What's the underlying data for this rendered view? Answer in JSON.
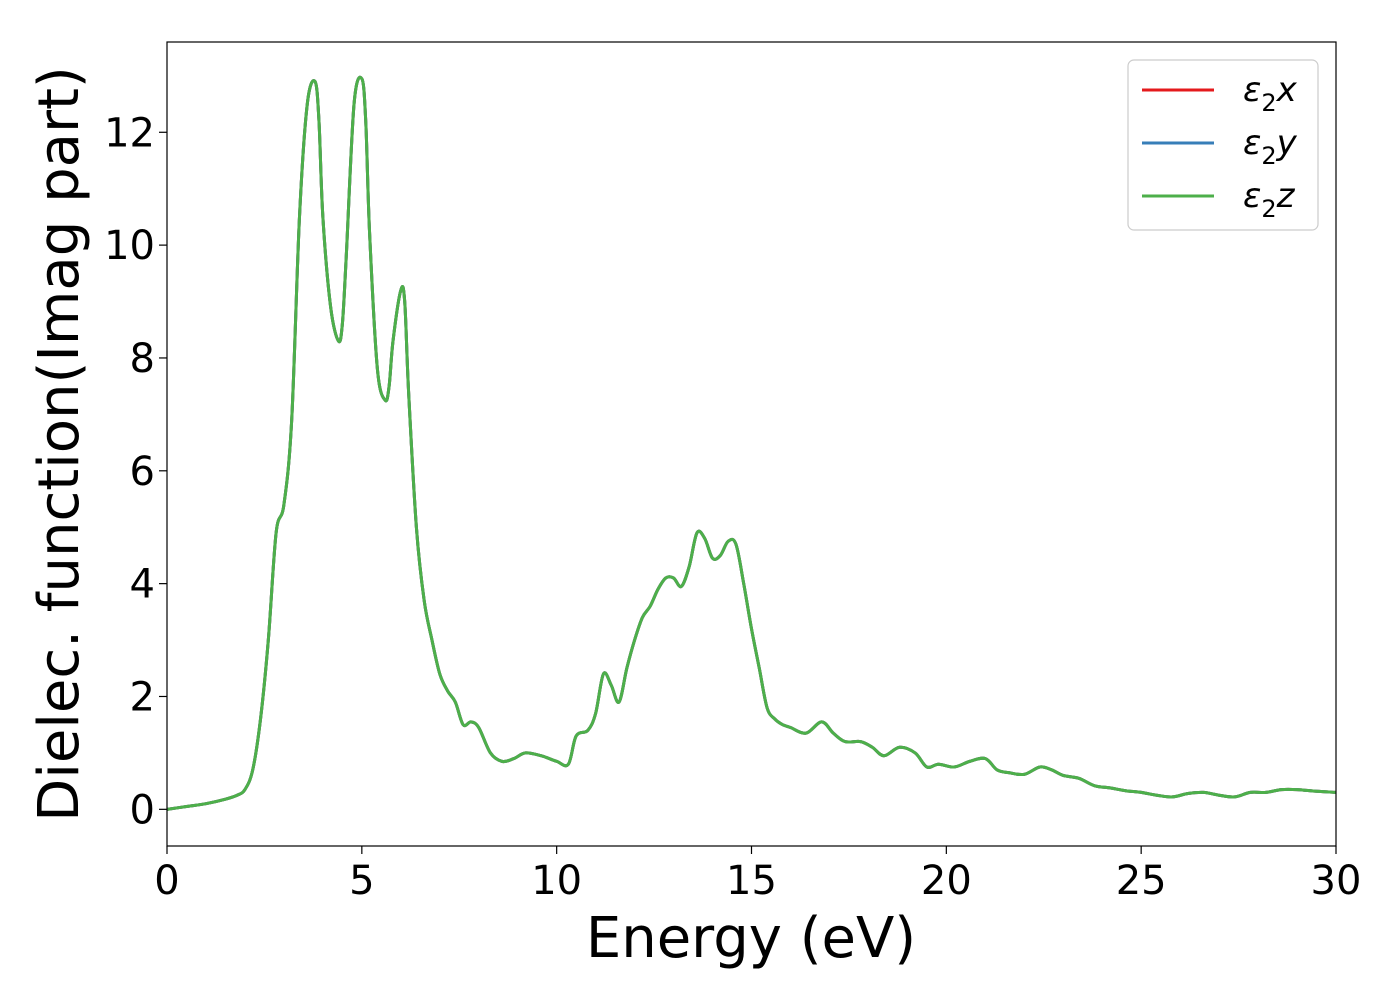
{
  "chart_data": {
    "type": "line",
    "xlabel": "Energy (eV)",
    "ylabel": "Dielec. function(Imag part)",
    "xlim": [
      0,
      30
    ],
    "ylim": [
      -0.65,
      13.6
    ],
    "xticks": [
      0,
      5,
      10,
      15,
      20,
      25,
      30
    ],
    "yticks": [
      0,
      2,
      4,
      6,
      8,
      10,
      12
    ],
    "grid": false,
    "legend_position": "top-right",
    "series": [
      {
        "name": "ε₂x",
        "label_base": "ε",
        "label_sub": "2",
        "label_axis": "x",
        "color": "#e41a1c"
      },
      {
        "name": "ε₂y",
        "label_base": "ε",
        "label_sub": "2",
        "label_axis": "y",
        "color": "#377eb8"
      },
      {
        "name": "ε₂z",
        "label_base": "ε",
        "label_sub": "2",
        "label_axis": "z",
        "color": "#4daf4a"
      }
    ],
    "shared_values_note_free": true,
    "x": [
      0,
      0.5,
      1.0,
      1.5,
      1.8,
      2.0,
      2.2,
      2.4,
      2.6,
      2.8,
      3.0,
      3.2,
      3.4,
      3.6,
      3.8,
      3.9,
      4.0,
      4.2,
      4.4,
      4.5,
      4.6,
      4.8,
      5.0,
      5.1,
      5.2,
      5.4,
      5.6,
      5.7,
      5.8,
      6.0,
      6.1,
      6.2,
      6.4,
      6.6,
      6.8,
      7.0,
      7.2,
      7.4,
      7.6,
      7.8,
      8.0,
      8.3,
      8.6,
      8.9,
      9.2,
      9.6,
      10.0,
      10.3,
      10.5,
      10.8,
      11.0,
      11.2,
      11.4,
      11.6,
      11.8,
      12.0,
      12.2,
      12.4,
      12.6,
      12.8,
      13.0,
      13.2,
      13.4,
      13.6,
      13.8,
      14.0,
      14.2,
      14.4,
      14.6,
      14.8,
      15.0,
      15.2,
      15.4,
      15.6,
      15.8,
      16.0,
      16.4,
      16.8,
      17.1,
      17.4,
      17.8,
      18.1,
      18.4,
      18.8,
      19.2,
      19.5,
      19.8,
      20.2,
      20.6,
      21.0,
      21.3,
      21.6,
      22.0,
      22.4,
      22.7,
      23.0,
      23.4,
      23.8,
      24.2,
      24.6,
      25.0,
      25.4,
      25.8,
      26.2,
      26.6,
      27.0,
      27.4,
      27.8,
      28.2,
      28.6,
      29.0,
      29.5,
      30.0
    ],
    "y": [
      0.0,
      0.05,
      0.1,
      0.18,
      0.25,
      0.35,
      0.7,
      1.6,
      3.0,
      4.9,
      5.4,
      6.9,
      10.5,
      12.5,
      12.9,
      12.2,
      10.5,
      8.9,
      8.3,
      8.6,
      9.8,
      12.5,
      12.95,
      12.2,
      10.2,
      7.8,
      7.25,
      7.5,
      8.3,
      9.2,
      9.0,
      7.4,
      5.0,
      3.7,
      3.0,
      2.4,
      2.1,
      1.9,
      1.5,
      1.55,
      1.45,
      1.0,
      0.85,
      0.9,
      1.0,
      0.95,
      0.85,
      0.8,
      1.3,
      1.4,
      1.7,
      2.4,
      2.2,
      1.9,
      2.5,
      3.0,
      3.4,
      3.6,
      3.9,
      4.1,
      4.1,
      3.95,
      4.3,
      4.9,
      4.8,
      4.45,
      4.5,
      4.75,
      4.7,
      4.0,
      3.2,
      2.5,
      1.8,
      1.6,
      1.5,
      1.45,
      1.35,
      1.55,
      1.35,
      1.2,
      1.2,
      1.1,
      0.95,
      1.1,
      1.0,
      0.75,
      0.8,
      0.75,
      0.85,
      0.9,
      0.7,
      0.65,
      0.62,
      0.75,
      0.7,
      0.6,
      0.55,
      0.42,
      0.38,
      0.33,
      0.3,
      0.25,
      0.22,
      0.28,
      0.3,
      0.25,
      0.22,
      0.3,
      0.3,
      0.35,
      0.35,
      0.32,
      0.3
    ]
  }
}
